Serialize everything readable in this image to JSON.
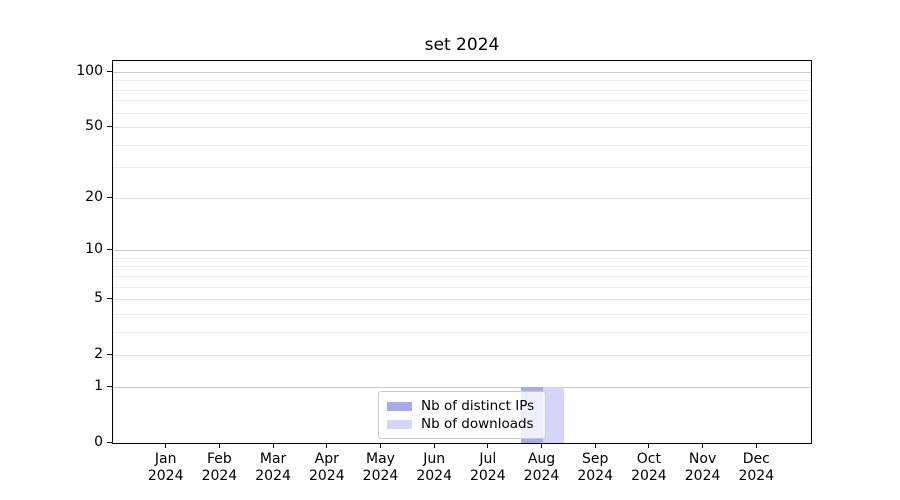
{
  "title": "set 2024",
  "legend": {
    "items": [
      {
        "label": "Nb of distinct IPs",
        "color": "#a9a9ef"
      },
      {
        "label": "Nb of downloads",
        "color": "#d6d6f9"
      }
    ]
  },
  "chart_data": {
    "type": "bar",
    "title": "set 2024",
    "categories": [
      "Jan 2024",
      "Feb 2024",
      "Mar 2024",
      "Apr 2024",
      "May 2024",
      "Jun 2024",
      "Jul 2024",
      "Aug 2024",
      "Sep 2024",
      "Oct 2024",
      "Nov 2024",
      "Dec 2024"
    ],
    "series": [
      {
        "name": "Nb of distinct IPs",
        "color": "#a9a9ef",
        "values": [
          0,
          0,
          0,
          0,
          0,
          0,
          0,
          1,
          0,
          0,
          0,
          0
        ]
      },
      {
        "name": "Nb of downloads",
        "color": "#d6d6f9",
        "values": [
          0,
          0,
          0,
          0,
          0,
          0,
          0,
          1,
          0,
          0,
          0,
          0
        ]
      }
    ],
    "xlabel": "",
    "ylabel": "",
    "yscale": "log1p",
    "ylim": [
      0,
      110
    ],
    "yticks_labeled": [
      0,
      1,
      2,
      5,
      10,
      20,
      50,
      100
    ],
    "yticks_minor": [
      3,
      4,
      6,
      7,
      8,
      9,
      30,
      40,
      60,
      70,
      80,
      90
    ],
    "ytick_emphasis": [
      1,
      10,
      100
    ],
    "grid": true,
    "legend_position": "lower center",
    "colors": {
      "grid_major": "#c9c9c9",
      "grid_labeled": "#e2e2e2",
      "grid_minor": "#ededed",
      "axis": "#000000",
      "background": "#ffffff"
    }
  }
}
